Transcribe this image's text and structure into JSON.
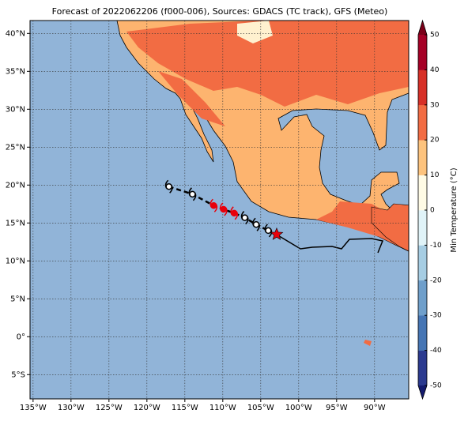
{
  "title": "Forecast of 2022062206 (f000-006), Sources: GDACS (TC track), GFS (Meteo)",
  "map": {
    "xlim": [
      -135.4,
      -85.5
    ],
    "ylim": [
      -8.2,
      41.7
    ],
    "xticks": [
      {
        "value": -135,
        "label": "135°W"
      },
      {
        "value": -130,
        "label": "130°W"
      },
      {
        "value": -125,
        "label": "125°W"
      },
      {
        "value": -120,
        "label": "120°W"
      },
      {
        "value": -115,
        "label": "115°W"
      },
      {
        "value": -110,
        "label": "110°W"
      },
      {
        "value": -105,
        "label": "105°W"
      },
      {
        "value": -100,
        "label": "100°W"
      },
      {
        "value": -95,
        "label": "95°W"
      },
      {
        "value": -90,
        "label": "90°W"
      }
    ],
    "yticks": [
      {
        "value": -5,
        "label": "5°S"
      },
      {
        "value": 0,
        "label": "0°"
      },
      {
        "value": 5,
        "label": "5°N"
      },
      {
        "value": 10,
        "label": "10°N"
      },
      {
        "value": 15,
        "label": "15°N"
      },
      {
        "value": 20,
        "label": "20°N"
      },
      {
        "value": 25,
        "label": "25°N"
      },
      {
        "value": 30,
        "label": "30°N"
      },
      {
        "value": 35,
        "label": "35°N"
      },
      {
        "value": 40,
        "label": "40°N"
      }
    ],
    "ocean_color": "#91b4d8",
    "grid": true
  },
  "track": {
    "lon": [
      -117.1,
      -114.0,
      -111.2,
      -109.9,
      -108.5,
      -107.1,
      -105.6,
      -104.0
    ],
    "lat": [
      19.8,
      18.8,
      17.3,
      16.8,
      16.3,
      15.7,
      14.8,
      14.0
    ],
    "colors": [
      "#000000",
      "#000000",
      "#e8000b",
      "#e8000b",
      "#e8000b",
      "#000000",
      "#000000",
      "#000000"
    ],
    "current_lon": -102.9,
    "current_lat": 13.5,
    "current_color": "#e8000b"
  },
  "colorbar": {
    "label": "Min Temperature (°C)",
    "lim": [
      -50,
      50
    ],
    "ticks": [
      50,
      40,
      30,
      20,
      10,
      0,
      -10,
      -20,
      -30,
      -40,
      -50
    ],
    "colors": [
      "#2b3a8f",
      "#4575b4",
      "#6f9fcb",
      "#a6cde3",
      "#e0f3f8",
      "#fffbe5",
      "#fdc37d",
      "#f26c43",
      "#d73027",
      "#a50026"
    ],
    "under_color": "#141b6e",
    "over_color": "#7a0019"
  }
}
